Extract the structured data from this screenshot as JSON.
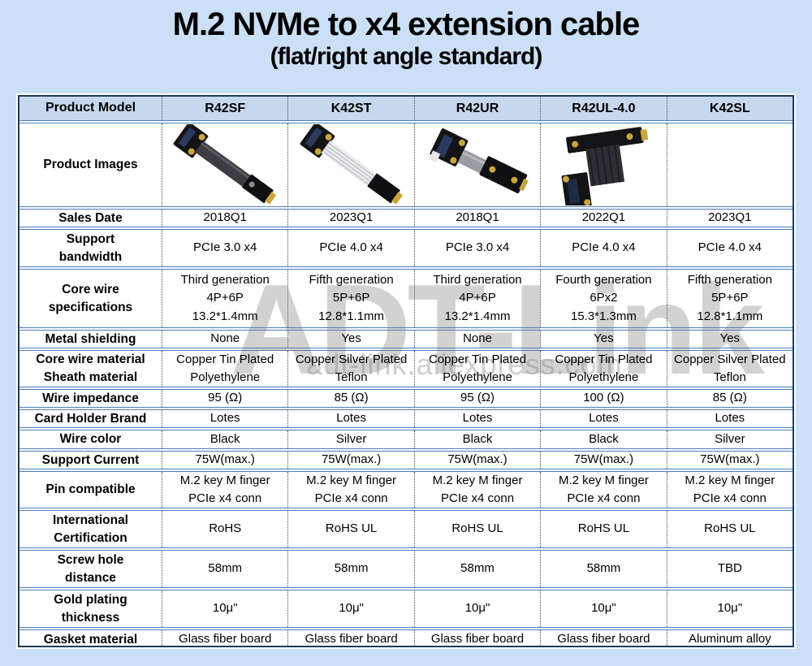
{
  "title": "M.2 NVMe to x4 extension cable",
  "subtitle": "(flat/right angle standard)",
  "watermark": {
    "brand": "ADT-Link",
    "url": "adt-link.aliexpress.com"
  },
  "colors": {
    "page_bg": "#cbdff6",
    "header_bg": "#c6d8ee",
    "cell_bg": "#ffffff",
    "outer_border": "#1c3c5e",
    "row_border": "#4a7ebc",
    "col_border": "#4a4a4a"
  },
  "table": {
    "columns": [
      "Product Model",
      "R42SF",
      "K42ST",
      "R42UR",
      "R42UL-4.0",
      "K42SL"
    ],
    "image_row": {
      "label": "Product Images",
      "images": [
        "r42sf-black-ribbon-cable",
        "k42st-silver-ribbon-cable",
        "r42ur-short-gray-ribbon-adapter",
        "r42ul-black-h-cable",
        "none"
      ]
    },
    "rows": [
      {
        "label": [
          "Sales Date"
        ],
        "values": [
          "2018Q1",
          "2023Q1",
          "2018Q1",
          "2022Q1",
          "2023Q1"
        ]
      },
      {
        "label": [
          "Support",
          "bandwidth"
        ],
        "values": [
          "PCIe 3.0 x4",
          "PCIe 4.0 x4",
          "PCIe 3.0 x4",
          "PCIe 4.0 x4",
          "PCIe 4.0 x4"
        ]
      },
      {
        "label": [
          "Core wire",
          "specifications"
        ],
        "values": [
          [
            "Third generation",
            "4P+6P",
            "13.2*1.4mm"
          ],
          [
            "Fifth generation",
            "5P+6P",
            "12.8*1.1mm"
          ],
          [
            "Third generation",
            "4P+6P",
            "13.2*1.4mm"
          ],
          [
            "Fourth generation",
            "6Px2",
            "15.3*1.3mm"
          ],
          [
            "Fifth generation",
            "5P+6P",
            "12.8*1.1mm"
          ]
        ]
      },
      {
        "label": [
          "Metal shielding"
        ],
        "values": [
          "None",
          "Yes",
          "None",
          "Yes",
          "Yes"
        ]
      },
      {
        "label": [
          "Core wire material",
          "Sheath material"
        ],
        "values": [
          [
            "Copper Tin Plated",
            "Polyethylene"
          ],
          [
            "Copper Silver Plated",
            "Teflon"
          ],
          [
            "Copper Tin Plated",
            "Polyethylene"
          ],
          [
            "Copper Tin Plated",
            "Polyethylene"
          ],
          [
            "Copper Silver Plated",
            "Teflon"
          ]
        ]
      },
      {
        "label": [
          "Wire impedance"
        ],
        "values": [
          "95 (Ω)",
          "85 (Ω)",
          "95 (Ω)",
          "100 (Ω)",
          "85 (Ω)"
        ]
      },
      {
        "label": [
          "Card Holder Brand"
        ],
        "values": [
          "Lotes",
          "Lotes",
          "Lotes",
          "Lotes",
          "Lotes"
        ]
      },
      {
        "label": [
          "Wire color"
        ],
        "values": [
          "Black",
          "Silver",
          "Black",
          "Black",
          "Silver"
        ]
      },
      {
        "label": [
          "Support Current"
        ],
        "values": [
          "75W(max.)",
          "75W(max.)",
          "75W(max.)",
          "75W(max.)",
          "75W(max.)"
        ]
      },
      {
        "label": [
          "Pin compatible"
        ],
        "values": [
          [
            "M.2 key M finger",
            "PCIe x4 conn"
          ],
          [
            "M.2 key M finger",
            "PCIe x4 conn"
          ],
          [
            "M.2 key M finger",
            "PCIe x4 conn"
          ],
          [
            "M.2 key M finger",
            "PCIe x4 conn"
          ],
          [
            "M.2 key M finger",
            "PCIe x4 conn"
          ]
        ]
      },
      {
        "label": [
          "International",
          "Certification"
        ],
        "values": [
          "RoHS",
          "RoHS UL",
          "RoHS UL",
          "RoHS UL",
          "RoHS UL"
        ]
      },
      {
        "label": [
          "Screw hole",
          "distance"
        ],
        "values": [
          "58mm",
          "58mm",
          "58mm",
          "58mm",
          "TBD"
        ]
      },
      {
        "label": [
          "Gold plating",
          "thickness"
        ],
        "values": [
          "10μ\"",
          "10μ\"",
          "10μ\"",
          "10μ\"",
          "10μ\""
        ]
      },
      {
        "label": [
          "Gasket material"
        ],
        "values": [
          "Glass fiber board",
          "Glass fiber board",
          "Glass fiber board",
          "Glass fiber board",
          "Aluminum alloy"
        ]
      }
    ]
  }
}
